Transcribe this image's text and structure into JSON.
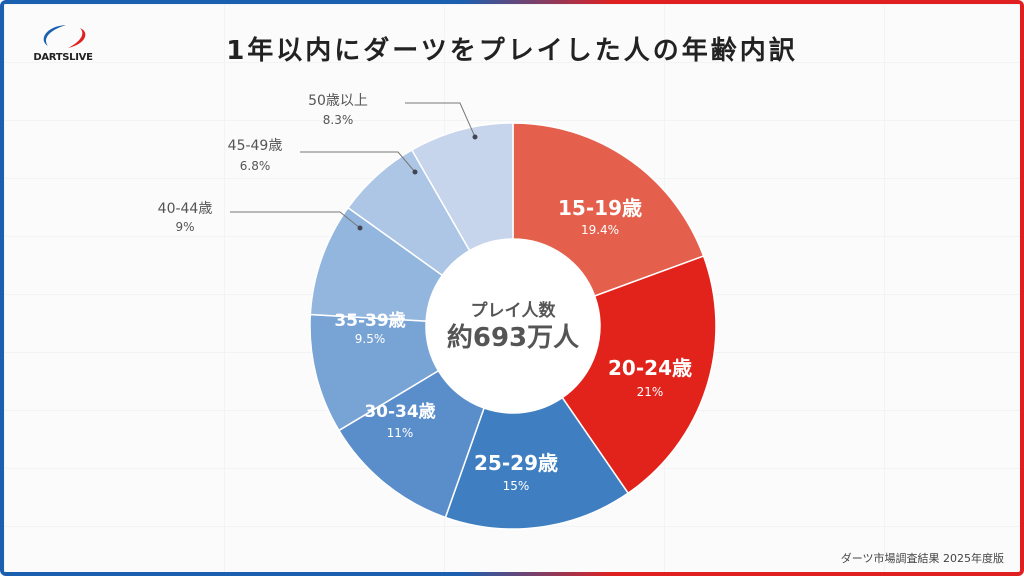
{
  "title": "1年以内にダーツをプレイした人の年齢内訳",
  "logo_text": "DARTSLIVE",
  "footer": "ダーツ市場調査結果 2025年度版",
  "chart_data": {
    "type": "pie",
    "style": "donut",
    "title": "1年以内にダーツをプレイした人の年齢内訳",
    "center_label": "プレイ人数",
    "center_value": "約693万人",
    "categories": [
      "15-19歳",
      "20-24歳",
      "25-29歳",
      "30-34歳",
      "35-39歳",
      "40-44歳",
      "45-49歳",
      "50歳以上"
    ],
    "values": [
      19.4,
      21,
      15,
      11,
      9.5,
      9,
      6.8,
      8.3
    ],
    "value_labels": [
      "19.4%",
      "21%",
      "15%",
      "11%",
      "9.5%",
      "9%",
      "6.8%",
      "8.3%"
    ],
    "colors": [
      "#e5604c",
      "#e2231c",
      "#3f7fc1",
      "#5a8ecb",
      "#78a3d5",
      "#93b6de",
      "#adc6e6",
      "#c6d5eb"
    ],
    "start_angle": "12 o'clock",
    "direction": "clockwise"
  }
}
